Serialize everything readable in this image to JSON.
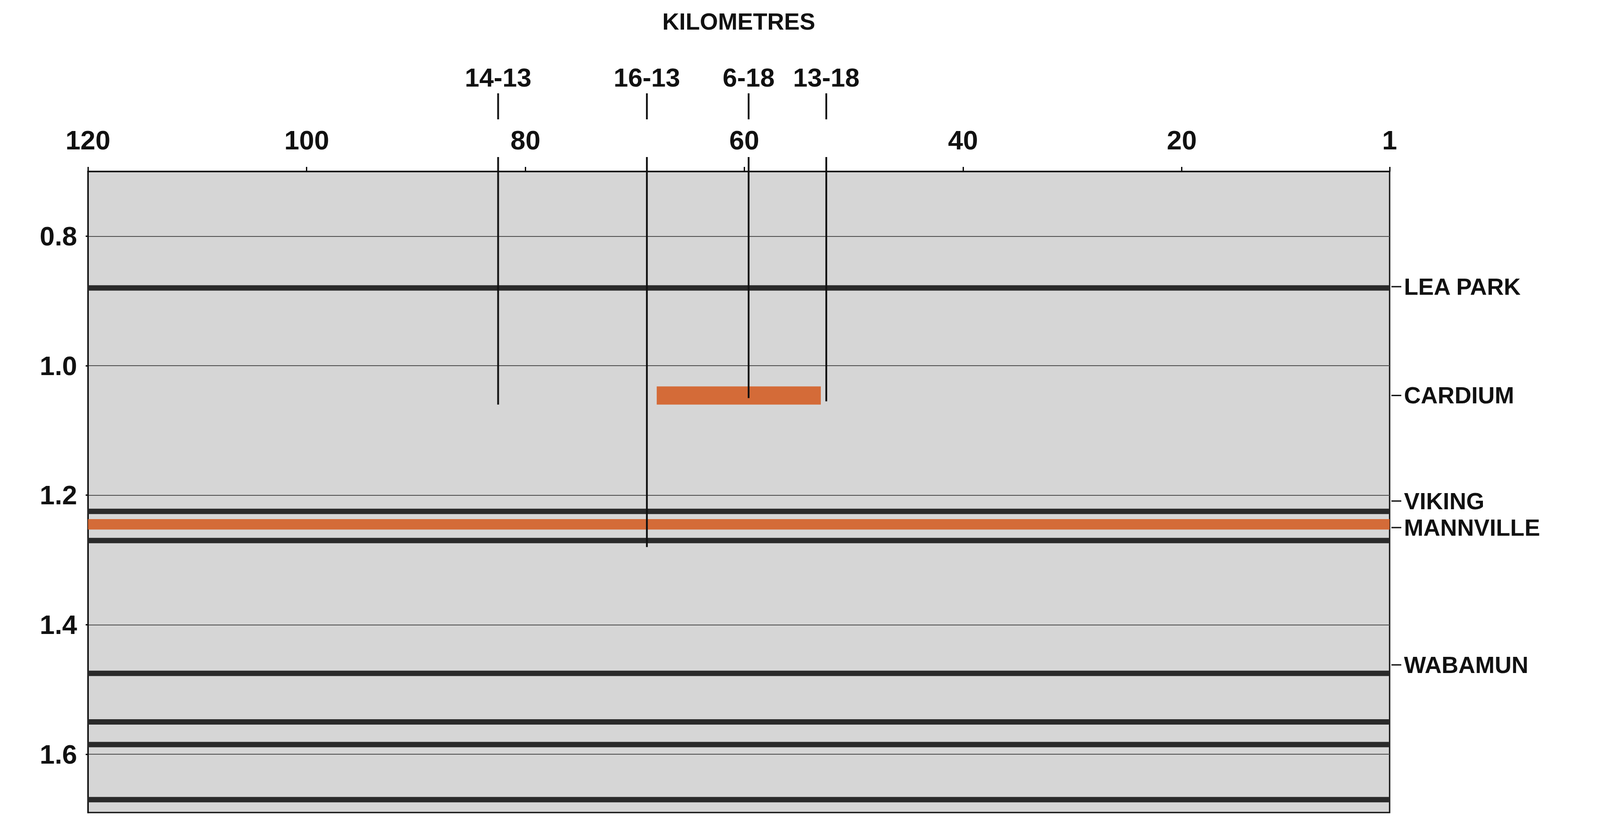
{
  "chart_data": {
    "type": "seismic_section",
    "x_label": "KILOMETRES",
    "xlim": [
      120,
      1
    ],
    "xticks": [
      120,
      100,
      80,
      60,
      40,
      20,
      1
    ],
    "ylim": [
      0.7,
      1.69
    ],
    "yticks": [
      0.8,
      {
        "value": 1,
        "label": "1.0"
      },
      1.2,
      1.4,
      1.6
    ],
    "grid": true,
    "wells": [
      {
        "name": "14-13",
        "x": 82.5,
        "depth": 1.06
      },
      {
        "name": "16-13",
        "x": 68.9,
        "depth": 1.28
      },
      {
        "name": "6-18",
        "x": 59.6,
        "depth": 1.05
      },
      {
        "name": "13-18",
        "x": 52.5,
        "depth": 1.055
      }
    ],
    "horizons": [
      {
        "name": "LEA PARK",
        "time": 0.878
      },
      {
        "name": "CARDIUM",
        "time": 1.046
      },
      {
        "name": "VIKING",
        "time": 1.209
      },
      {
        "name": "MANNVILLE",
        "time": 1.25
      },
      {
        "name": "WABAMUN",
        "time": 1.462
      }
    ],
    "reflectors": [
      0.88,
      1.225,
      1.27,
      1.475,
      1.55,
      1.585,
      1.67
    ],
    "reflector_color": "#2a2a2a",
    "highlights": [
      {
        "x": [
          68,
          53
        ],
        "y": [
          1.032,
          1.06
        ],
        "color": "#d4622a"
      },
      {
        "x": [
          120,
          1
        ],
        "y": [
          1.237,
          1.253
        ],
        "color": "#d4622a"
      }
    ]
  }
}
